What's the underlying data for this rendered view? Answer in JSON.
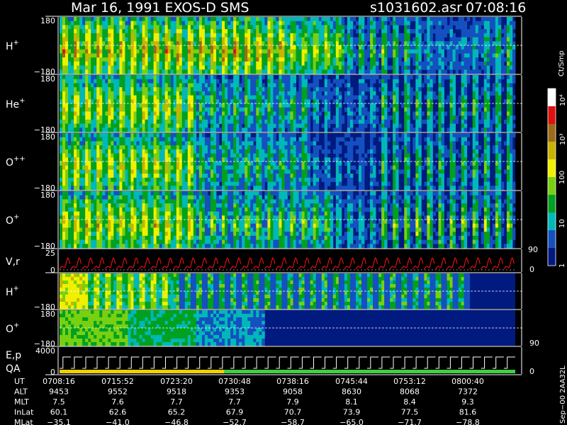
{
  "header": {
    "title": "Mar 16, 1991    EXOS-D SMS",
    "file": "s1031602.asr",
    "time": "07:08:16"
  },
  "colorbar": {
    "unit": "Ct/Smp",
    "ticks": [
      "10⁴",
      "10³",
      "100",
      "10",
      "1"
    ],
    "tick_values": [
      10000,
      1000,
      100,
      10,
      1
    ],
    "colors": [
      "#ffffff",
      "#e01010",
      "#9e6a18",
      "#c8b400",
      "#f0f000",
      "#78d010",
      "#00a020",
      "#00b8b8",
      "#1450c0",
      "#001a80"
    ]
  },
  "panels": [
    {
      "id": "h-plus",
      "label": "H",
      "sup": "+",
      "ymax": "180",
      "ymin": "−180"
    },
    {
      "id": "he-plus",
      "label": "He",
      "sup": "+",
      "ymax": "180",
      "ymin": "−180"
    },
    {
      "id": "o-plusplus",
      "label": "O",
      "sup": "++",
      "ymax": "180",
      "ymin": "−180"
    },
    {
      "id": "o-plus",
      "label": "O",
      "sup": "+",
      "ymax": "180",
      "ymin": "−180"
    },
    {
      "id": "vr",
      "label": "V,r",
      "sup": "",
      "ymax": "25",
      "ymin": "0",
      "right_max": "90",
      "right_min": "0"
    },
    {
      "id": "h-plus-2",
      "label": "H",
      "sup": "+",
      "ymax": "",
      "ymin": "−180"
    },
    {
      "id": "o-plus-2",
      "label": "O",
      "sup": "+",
      "ymax": "180",
      "ymin": "−180",
      "right_min": "90"
    },
    {
      "id": "ep-qa",
      "label": "E,p",
      "label2": "QA",
      "ymax": "4000",
      "ymin": "0",
      "right_min": "0"
    }
  ],
  "orbit_table": {
    "rows": [
      {
        "name": "UT",
        "values": [
          "0708:16",
          "0715:52",
          "0723:20",
          "0730:48",
          "0738:16",
          "0745:44",
          "0753:12",
          "0800:40"
        ]
      },
      {
        "name": "ALT",
        "values": [
          "9453",
          "9552",
          "9518",
          "9353",
          "9058",
          "8630",
          "8068",
          "7372"
        ]
      },
      {
        "name": "MLT",
        "values": [
          "7.5",
          "7.6",
          "7.7",
          "7.7",
          "7.9",
          "8.1",
          "8.4",
          "9.3"
        ]
      },
      {
        "name": "InLat",
        "values": [
          "60.1",
          "62.6",
          "65.2",
          "67.9",
          "70.7",
          "73.9",
          "77.5",
          "81.6"
        ]
      },
      {
        "name": "MLat",
        "values": [
          "−35.1",
          "−41.0",
          "−46.8",
          "−52.7",
          "−58.7",
          "−65.0",
          "−71.7",
          "−78.8"
        ]
      }
    ]
  },
  "footer_id": "Sep−00 2AA32L",
  "chart_data": {
    "type": "heatmap",
    "title": "Mar 16, 1991    EXOS-D SMS",
    "x": [
      "0708:16",
      "0715:52",
      "0723:20",
      "0730:48",
      "0738:16",
      "0745:44",
      "0753:12",
      "0800:40"
    ],
    "ylim": [
      -180,
      180
    ],
    "color_scale": "log",
    "color_range": [
      1,
      10000
    ],
    "series": [
      {
        "name": "H+"
      },
      {
        "name": "He+"
      },
      {
        "name": "O++"
      },
      {
        "name": "O+"
      },
      {
        "name": "V,r"
      },
      {
        "name": "H+"
      },
      {
        "name": "O+"
      },
      {
        "name": "E,p QA"
      }
    ]
  }
}
